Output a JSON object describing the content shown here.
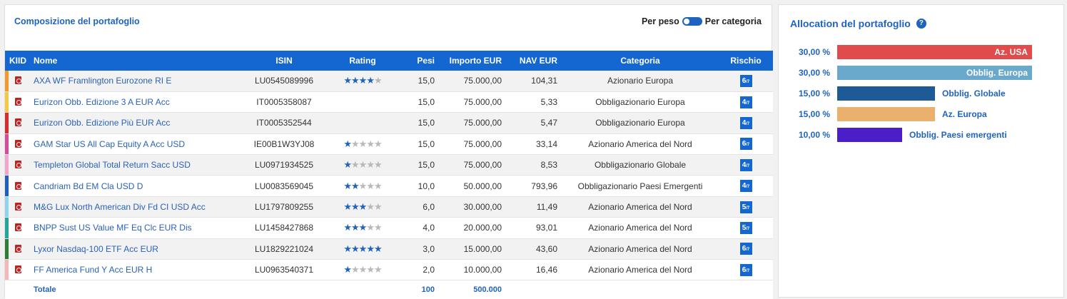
{
  "left_panel": {
    "title": "Composizione del portafoglio",
    "toggle_left": "Per peso",
    "toggle_right": "Per categoria"
  },
  "table": {
    "headers": {
      "kiid": "KIID",
      "nome": "Nome",
      "isin": "ISIN",
      "rating": "Rating",
      "pesi": "Pesi",
      "importo": "Importo EUR",
      "nav": "NAV EUR",
      "categoria": "Categoria",
      "rischio": "Rischio"
    },
    "rows": [
      {
        "color": "#f29a2e",
        "name": "AXA WF Framlington Eurozone RI E",
        "isin": "LU0545089996",
        "rating": 4,
        "pesi": "15,0",
        "importo": "75.000,00",
        "nav": "104,31",
        "categoria": "Azionario Europa",
        "rischio": "6"
      },
      {
        "color": "#f5c842",
        "name": "Eurizon Obb. Edizione 3 A EUR Acc",
        "isin": "IT0005358087",
        "rating": 0,
        "pesi": "15,0",
        "importo": "75.000,00",
        "nav": "5,33",
        "categoria": "Obbligazionario Europa",
        "rischio": "4"
      },
      {
        "color": "#d92b2b",
        "name": "Eurizon Obb. Edizione Più EUR Acc",
        "isin": "IT0005352544",
        "rating": 0,
        "pesi": "15,0",
        "importo": "75.000,00",
        "nav": "5,47",
        "categoria": "Obbligazionario Europa",
        "rischio": "4"
      },
      {
        "color": "#d64b9c",
        "name": "GAM Star US All Cap Equity A Acc USD",
        "isin": "IE00B1W3YJ08",
        "rating": 1,
        "pesi": "15,0",
        "importo": "75.000,00",
        "nav": "33,14",
        "categoria": "Azionario America del Nord",
        "rischio": "6"
      },
      {
        "color": "#f2a6cc",
        "name": "Templeton Global Total Return Sacc USD",
        "isin": "LU0971934525",
        "rating": 1,
        "pesi": "15,0",
        "importo": "75.000,00",
        "nav": "8,53",
        "categoria": "Obbligazionario Globale",
        "rischio": "4"
      },
      {
        "color": "#1f5fc0",
        "name": "Candriam Bd EM Cla USD D",
        "isin": "LU0083569045",
        "rating": 2,
        "pesi": "10,0",
        "importo": "50.000,00",
        "nav": "793,96",
        "categoria": "Obbligazionario Paesi Emergenti",
        "rischio": "4"
      },
      {
        "color": "#8fd3ee",
        "name": "M&G Lux North American Div Fd CI USD Acc",
        "isin": "LU1797809255",
        "rating": 3,
        "pesi": "6,0",
        "importo": "30.000,00",
        "nav": "11,49",
        "categoria": "Azionario America del Nord",
        "rischio": "5"
      },
      {
        "color": "#22a79a",
        "name": "BNPP Sust US Value MF Eq Clc EUR Dis",
        "isin": "LU1458427868",
        "rating": 3,
        "pesi": "4,0",
        "importo": "20.000,00",
        "nav": "93,01",
        "categoria": "Azionario America del Nord",
        "rischio": "5"
      },
      {
        "color": "#2e7d32",
        "name": "Lyxor Nasdaq-100 ETF Acc EUR",
        "isin": "LU1829221024",
        "rating": 5,
        "pesi": "3,0",
        "importo": "15.000,00",
        "nav": "43,60",
        "categoria": "Azionario America del Nord",
        "rischio": "6"
      },
      {
        "color": "#f4b6b6",
        "name": "FF America Fund Y Acc EUR H",
        "isin": "LU0963540371",
        "rating": 1,
        "pesi": "2,0",
        "importo": "10.000,00",
        "nav": "16,46",
        "categoria": "Azionario America del Nord",
        "rischio": "6"
      }
    ],
    "risk_scale": "/7",
    "footer": {
      "label": "Totale",
      "pesi": "100",
      "importo": "500.000"
    }
  },
  "right_panel": {
    "title": "Allocation del portafoglio",
    "help_icon": "?",
    "allocation": [
      {
        "pct": "30,00 %",
        "value": 30,
        "label": "Az. USA",
        "color": "#e04b4b",
        "label_inside": true
      },
      {
        "pct": "30,00 %",
        "value": 30,
        "label": "Obblig. Europa",
        "color": "#6aa8cc",
        "label_inside": true
      },
      {
        "pct": "15,00 %",
        "value": 15,
        "label": "Obblig. Globale",
        "color": "#1e5a96",
        "label_inside": false
      },
      {
        "pct": "15,00 %",
        "value": 15,
        "label": "Az. Europa",
        "color": "#e9b06e",
        "label_inside": false
      },
      {
        "pct": "10,00 %",
        "value": 10,
        "label": "Obblig. Paesi emergenti",
        "color": "#4a1ec9",
        "label_inside": false
      }
    ]
  }
}
